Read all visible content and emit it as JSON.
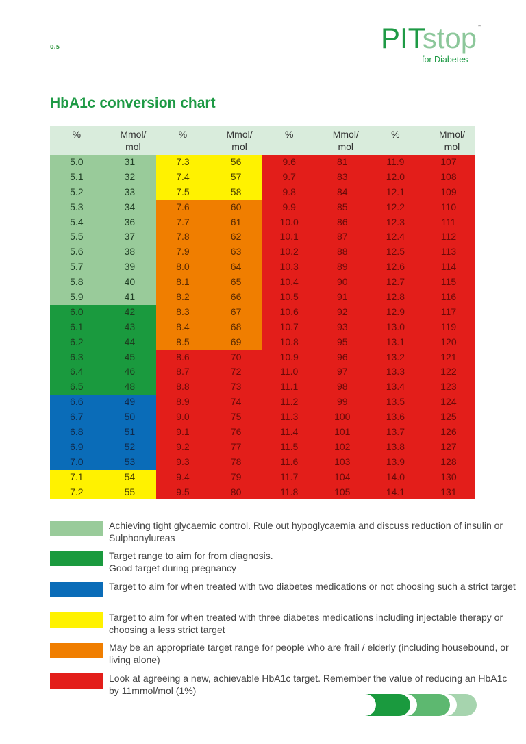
{
  "page_number": "0.5",
  "logo": {
    "text_bold": "PIT",
    "text_light": "stop",
    "subtitle": "for Diabetes",
    "trademark": "™"
  },
  "title": "HbA1c conversion chart",
  "colors": {
    "light_green": "#99cb9a",
    "green": "#1a9a3e",
    "blue": "#0a6cb8",
    "yellow": "#fff200",
    "orange": "#f07e00",
    "red": "#e31e1a",
    "header_bg": "#d9ecdc",
    "brand_green": "#1e9a45"
  },
  "table": {
    "headers": [
      "%",
      "Mmol/\nmol",
      "%",
      "Mmol/\nmol",
      "%",
      "Mmol/\nmol",
      "%",
      "Mmol/\nmol"
    ],
    "rows": [
      [
        [
          "5.0",
          "31",
          "light_green"
        ],
        [
          "7.3",
          "56",
          "yellow"
        ],
        [
          "9.6",
          "81",
          "red"
        ],
        [
          "11.9",
          "107",
          "red"
        ]
      ],
      [
        [
          "5.1",
          "32",
          "light_green"
        ],
        [
          "7.4",
          "57",
          "yellow"
        ],
        [
          "9.7",
          "83",
          "red"
        ],
        [
          "12.0",
          "108",
          "red"
        ]
      ],
      [
        [
          "5.2",
          "33",
          "light_green"
        ],
        [
          "7.5",
          "58",
          "yellow"
        ],
        [
          "9.8",
          "84",
          "red"
        ],
        [
          "12.1",
          "109",
          "red"
        ]
      ],
      [
        [
          "5.3",
          "34",
          "light_green"
        ],
        [
          "7.6",
          "60",
          "orange"
        ],
        [
          "9.9",
          "85",
          "red"
        ],
        [
          "12.2",
          "110",
          "red"
        ]
      ],
      [
        [
          "5.4",
          "36",
          "light_green"
        ],
        [
          "7.7",
          "61",
          "orange"
        ],
        [
          "10.0",
          "86",
          "red"
        ],
        [
          "12.3",
          "111",
          "red"
        ]
      ],
      [
        [
          "5.5",
          "37",
          "light_green"
        ],
        [
          "7.8",
          "62",
          "orange"
        ],
        [
          "10.1",
          "87",
          "red"
        ],
        [
          "12.4",
          "112",
          "red"
        ]
      ],
      [
        [
          "5.6",
          "38",
          "light_green"
        ],
        [
          "7.9",
          "63",
          "orange"
        ],
        [
          "10.2",
          "88",
          "red"
        ],
        [
          "12.5",
          "113",
          "red"
        ]
      ],
      [
        [
          "5.7",
          "39",
          "light_green"
        ],
        [
          "8.0",
          "64",
          "orange"
        ],
        [
          "10.3",
          "89",
          "red"
        ],
        [
          "12.6",
          "114",
          "red"
        ]
      ],
      [
        [
          "5.8",
          "40",
          "light_green"
        ],
        [
          "8.1",
          "65",
          "orange"
        ],
        [
          "10.4",
          "90",
          "red"
        ],
        [
          "12.7",
          "115",
          "red"
        ]
      ],
      [
        [
          "5.9",
          "41",
          "light_green"
        ],
        [
          "8.2",
          "66",
          "orange"
        ],
        [
          "10.5",
          "91",
          "red"
        ],
        [
          "12.8",
          "116",
          "red"
        ]
      ],
      [
        [
          "6.0",
          "42",
          "green"
        ],
        [
          "8.3",
          "67",
          "orange"
        ],
        [
          "10.6",
          "92",
          "red"
        ],
        [
          "12.9",
          "117",
          "red"
        ]
      ],
      [
        [
          "6.1",
          "43",
          "green"
        ],
        [
          "8.4",
          "68",
          "orange"
        ],
        [
          "10.7",
          "93",
          "red"
        ],
        [
          "13.0",
          "119",
          "red"
        ]
      ],
      [
        [
          "6.2",
          "44",
          "green"
        ],
        [
          "8.5",
          "69",
          "orange"
        ],
        [
          "10.8",
          "95",
          "red"
        ],
        [
          "13.1",
          "120",
          "red"
        ]
      ],
      [
        [
          "6.3",
          "45",
          "green"
        ],
        [
          "8.6",
          "70",
          "red"
        ],
        [
          "10.9",
          "96",
          "red"
        ],
        [
          "13.2",
          "121",
          "red"
        ]
      ],
      [
        [
          "6.4",
          "46",
          "green"
        ],
        [
          "8.7",
          "72",
          "red"
        ],
        [
          "11.0",
          "97",
          "red"
        ],
        [
          "13.3",
          "122",
          "red"
        ]
      ],
      [
        [
          "6.5",
          "48",
          "green"
        ],
        [
          "8.8",
          "73",
          "red"
        ],
        [
          "11.1",
          "98",
          "red"
        ],
        [
          "13.4",
          "123",
          "red"
        ]
      ],
      [
        [
          "6.6",
          "49",
          "blue"
        ],
        [
          "8.9",
          "74",
          "red"
        ],
        [
          "11.2",
          "99",
          "red"
        ],
        [
          "13.5",
          "124",
          "red"
        ]
      ],
      [
        [
          "6.7",
          "50",
          "blue"
        ],
        [
          "9.0",
          "75",
          "red"
        ],
        [
          "11.3",
          "100",
          "red"
        ],
        [
          "13.6",
          "125",
          "red"
        ]
      ],
      [
        [
          "6.8",
          "51",
          "blue"
        ],
        [
          "9.1",
          "76",
          "red"
        ],
        [
          "11.4",
          "101",
          "red"
        ],
        [
          "13.7",
          "126",
          "red"
        ]
      ],
      [
        [
          "6.9",
          "52",
          "blue"
        ],
        [
          "9.2",
          "77",
          "red"
        ],
        [
          "11.5",
          "102",
          "red"
        ],
        [
          "13.8",
          "127",
          "red"
        ]
      ],
      [
        [
          "7.0",
          "53",
          "blue"
        ],
        [
          "9.3",
          "78",
          "red"
        ],
        [
          "11.6",
          "103",
          "red"
        ],
        [
          "13.9",
          "128",
          "red"
        ]
      ],
      [
        [
          "7.1",
          "54",
          "yellow"
        ],
        [
          "9.4",
          "79",
          "red"
        ],
        [
          "11.7",
          "104",
          "red"
        ],
        [
          "14.0",
          "130",
          "red"
        ]
      ],
      [
        [
          "7.2",
          "55",
          "yellow"
        ],
        [
          "9.5",
          "80",
          "red"
        ],
        [
          "11.8",
          "105",
          "red"
        ],
        [
          "14.1",
          "131",
          "red"
        ]
      ]
    ]
  },
  "legend": [
    {
      "color": "light_green",
      "text": "Achieving tight glycaemic control. Rule out hypoglycaemia and discuss reduction of insulin or Sulphonylureas"
    },
    {
      "color": "green",
      "text": "Target range to aim for from diagnosis.\nGood target during pregnancy"
    },
    {
      "color": "blue",
      "text": "Target to aim for when treated with two diabetes medications or not choosing such a strict target"
    },
    {
      "color": "yellow",
      "text": "Target to aim for when treated with three diabetes medications including injectable therapy or choosing a less strict target"
    },
    {
      "color": "orange",
      "text": "May be an appropriate target range for people who are frail / elderly (including housebound, or living alone)"
    },
    {
      "color": "red",
      "text": "Look at agreeing a new, achievable HbA1c target. Remember the value of reducing an HbA1c by 11mmol/mol (1%)"
    }
  ],
  "footer_icons": [
    "chevron-dark-green-icon",
    "chevron-mid-green-icon",
    "chevron-light-green-icon"
  ]
}
